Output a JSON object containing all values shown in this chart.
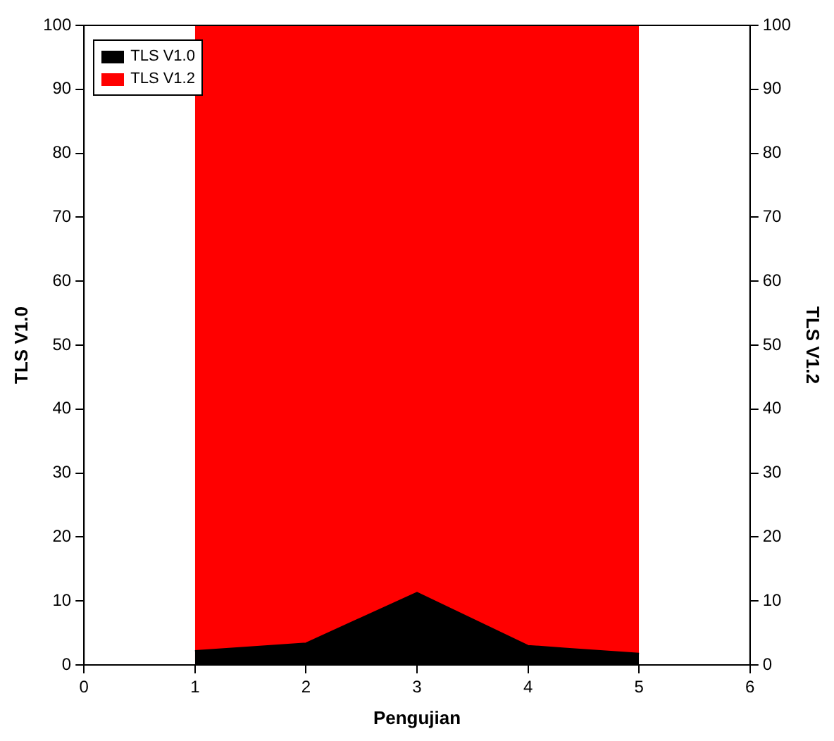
{
  "chart_data": {
    "type": "area",
    "xlabel": "Pengujian",
    "ylabel": "TLS V1.0",
    "y2label": "TLS V1.2",
    "series": [
      {
        "name": "TLS V1.0",
        "color": "#000000",
        "x": [
          1,
          1.33,
          2,
          3,
          4,
          4.33,
          5
        ],
        "values": [
          2.2,
          2.6,
          3.4,
          11.3,
          3.0,
          2.6,
          1.8
        ]
      },
      {
        "name": "TLS V1.2",
        "color": "#ff0000",
        "axis": "y2",
        "x": [
          1,
          5
        ],
        "values": [
          100,
          100
        ]
      }
    ],
    "xlim": [
      0,
      6
    ],
    "xticks": [
      0,
      1,
      2,
      3,
      4,
      5,
      6
    ],
    "ylim": [
      0,
      100
    ],
    "yticks": [
      0,
      10,
      20,
      30,
      40,
      50,
      60,
      70,
      80,
      90,
      100
    ],
    "y2lim": [
      0,
      100
    ],
    "y2ticks": [
      0,
      10,
      20,
      30,
      40,
      50,
      60,
      70,
      80,
      90,
      100
    ],
    "legend": "top left",
    "grid": false
  }
}
